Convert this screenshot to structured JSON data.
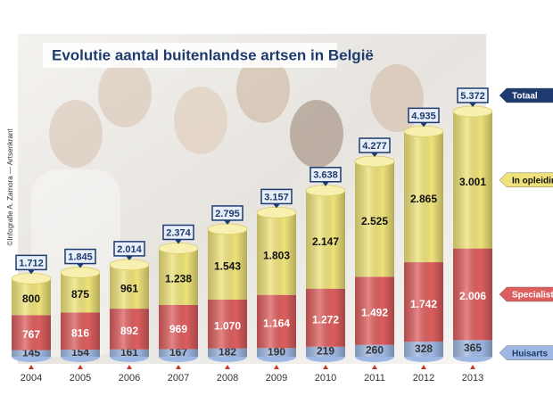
{
  "chart_data": {
    "type": "stacked-cylinder",
    "title": "Evolutie aantal buitenlandse artsen in België",
    "credit": "©Infografie A. Zamora — Artsenkrant",
    "categories": [
      "2004",
      "2005",
      "2006",
      "2007",
      "2008",
      "2009",
      "2010",
      "2011",
      "2012",
      "2013"
    ],
    "series": [
      {
        "name": "Huisarts",
        "color": "#9fb8e3",
        "values": [
          145,
          154,
          161,
          167,
          182,
          190,
          219,
          260,
          328,
          365
        ],
        "value_labels": [
          "145",
          "154",
          "161",
          "167",
          "182",
          "190",
          "219",
          "260",
          "328",
          "365"
        ]
      },
      {
        "name": "Specialist",
        "color": "#dc5e5e",
        "values": [
          767,
          816,
          892,
          969,
          1070,
          1164,
          1272,
          1492,
          1742,
          2006
        ],
        "value_labels": [
          "767",
          "816",
          "892",
          "969",
          "1.070",
          "1.164",
          "1.272",
          "1.492",
          "1.742",
          "2.006"
        ]
      },
      {
        "name": "In opleiding",
        "color": "#eee27a",
        "values": [
          800,
          875,
          961,
          1238,
          1543,
          1803,
          2147,
          2525,
          2865,
          3001
        ],
        "value_labels": [
          "800",
          "875",
          "961",
          "1.238",
          "1.543",
          "1.803",
          "2.147",
          "2.525",
          "2.865",
          "3.001"
        ]
      }
    ],
    "totals": {
      "name": "Totaal",
      "color": "#1d3b6e",
      "values": [
        1712,
        1845,
        2014,
        2374,
        2795,
        3157,
        3638,
        4277,
        4935,
        5372
      ],
      "value_labels": [
        "1.712",
        "1.845",
        "2.014",
        "2.374",
        "2.795",
        "3.157",
        "3.638",
        "4.277",
        "4.935",
        "5.372"
      ]
    }
  }
}
